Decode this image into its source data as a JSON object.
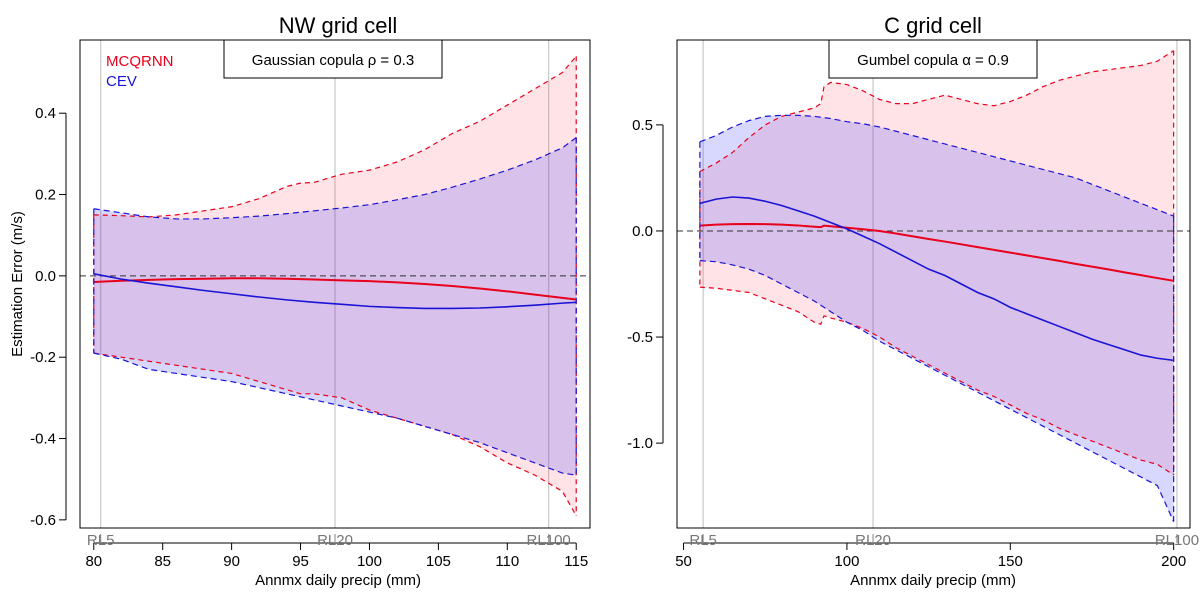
{
  "chart_data": [
    {
      "type": "area",
      "title": "NW grid cell",
      "xlabel": "Annmx daily precip (mm)",
      "ylabel": "Estimation Error (m/s)",
      "xlim": [
        79,
        116
      ],
      "ylim": [
        -0.62,
        0.58
      ],
      "x_ticks": [
        80,
        85,
        90,
        95,
        100,
        105,
        110,
        115
      ],
      "x_tick_labels": [
        "80",
        "85",
        "90",
        "95",
        "100",
        "105",
        "110",
        "115"
      ],
      "y_ticks": [
        -0.6,
        -0.4,
        -0.2,
        0.0,
        0.2,
        0.4
      ],
      "y_tick_labels": [
        "-0.6",
        "-0.4",
        "-0.2",
        "0.0",
        "0.2",
        "0.4"
      ],
      "return_levels": [
        {
          "label": "RL5",
          "x": 80.5
        },
        {
          "label": "RL20",
          "x": 97.5
        },
        {
          "label": "RL100",
          "x": 113
        }
      ],
      "annotation": "Gaussian copula ρ = 0.3",
      "legend": [
        {
          "name": "MCQRNN",
          "color": "#e8001c"
        },
        {
          "name": "CEV",
          "color": "#1a14d6"
        }
      ],
      "series": [
        {
          "name": "MCQRNN",
          "color": "#e8001c",
          "x": [
            80,
            82,
            84,
            86,
            88,
            90,
            92,
            94,
            95,
            96,
            98,
            100,
            102,
            104,
            106,
            108,
            110,
            112,
            114,
            115
          ],
          "lower": [
            -0.19,
            -0.2,
            -0.21,
            -0.22,
            -0.23,
            -0.24,
            -0.26,
            -0.28,
            -0.29,
            -0.29,
            -0.3,
            -0.33,
            -0.35,
            -0.37,
            -0.39,
            -0.42,
            -0.46,
            -0.49,
            -0.53,
            -0.59
          ],
          "median": [
            -0.015,
            -0.012,
            -0.01,
            -0.008,
            -0.007,
            -0.006,
            -0.006,
            -0.007,
            -0.008,
            -0.009,
            -0.011,
            -0.013,
            -0.016,
            -0.02,
            -0.025,
            -0.031,
            -0.038,
            -0.046,
            -0.054,
            -0.058
          ],
          "upper": [
            0.15,
            0.148,
            0.145,
            0.15,
            0.16,
            0.17,
            0.19,
            0.22,
            0.228,
            0.23,
            0.25,
            0.26,
            0.28,
            0.31,
            0.35,
            0.38,
            0.42,
            0.46,
            0.5,
            0.54
          ]
        },
        {
          "name": "CEV",
          "color": "#1a14d6",
          "x": [
            80,
            82,
            84,
            86,
            88,
            90,
            92,
            94,
            96,
            98,
            100,
            102,
            104,
            106,
            108,
            110,
            112,
            114,
            115
          ],
          "lower": [
            -0.19,
            -0.205,
            -0.23,
            -0.24,
            -0.25,
            -0.26,
            -0.275,
            -0.29,
            -0.305,
            -0.32,
            -0.335,
            -0.35,
            -0.37,
            -0.39,
            -0.41,
            -0.435,
            -0.46,
            -0.485,
            -0.49
          ],
          "median": [
            0.005,
            -0.008,
            -0.018,
            -0.027,
            -0.036,
            -0.044,
            -0.052,
            -0.059,
            -0.065,
            -0.07,
            -0.075,
            -0.078,
            -0.08,
            -0.08,
            -0.079,
            -0.076,
            -0.072,
            -0.067,
            -0.065
          ],
          "upper": [
            0.165,
            0.155,
            0.145,
            0.14,
            0.14,
            0.143,
            0.147,
            0.153,
            0.16,
            0.167,
            0.175,
            0.187,
            0.2,
            0.218,
            0.238,
            0.26,
            0.285,
            0.315,
            0.34
          ]
        }
      ]
    },
    {
      "type": "area",
      "title": "C grid cell",
      "xlabel": "Annmx daily precip (mm)",
      "ylabel": "",
      "xlim": [
        48,
        205
      ],
      "ylim": [
        -1.4,
        0.9
      ],
      "x_ticks": [
        50,
        100,
        150,
        200
      ],
      "x_tick_labels": [
        "50",
        "100",
        "150",
        "200"
      ],
      "y_ticks": [
        -1.0,
        -0.5,
        0.0,
        0.5
      ],
      "y_tick_labels": [
        "-1.0",
        "-0.5",
        "0.0",
        "0.5"
      ],
      "return_levels": [
        {
          "label": "RL5",
          "x": 56
        },
        {
          "label": "RL20",
          "x": 108
        },
        {
          "label": "RL100",
          "x": 201
        }
      ],
      "annotation": "Gumbel copula α = 0.9",
      "series": [
        {
          "name": "MCQRNN",
          "color": "#e8001c",
          "x": [
            55,
            60,
            65,
            70,
            75,
            80,
            85,
            90,
            92,
            93,
            95,
            100,
            105,
            110,
            115,
            120,
            125,
            130,
            135,
            140,
            145,
            150,
            155,
            160,
            165,
            170,
            175,
            180,
            185,
            190,
            195,
            200
          ],
          "lower": [
            -0.265,
            -0.27,
            -0.28,
            -0.29,
            -0.32,
            -0.35,
            -0.38,
            -0.43,
            -0.44,
            -0.4,
            -0.41,
            -0.43,
            -0.46,
            -0.5,
            -0.55,
            -0.59,
            -0.63,
            -0.67,
            -0.71,
            -0.75,
            -0.78,
            -0.82,
            -0.86,
            -0.89,
            -0.93,
            -0.96,
            -0.99,
            -1.02,
            -1.05,
            -1.08,
            -1.1,
            -1.15
          ],
          "median": [
            0.025,
            0.03,
            0.032,
            0.033,
            0.032,
            0.03,
            0.026,
            0.02,
            0.018,
            0.025,
            0.022,
            0.015,
            0.008,
            0.0,
            -0.012,
            -0.025,
            -0.038,
            -0.05,
            -0.063,
            -0.076,
            -0.089,
            -0.102,
            -0.115,
            -0.128,
            -0.141,
            -0.155,
            -0.168,
            -0.181,
            -0.195,
            -0.208,
            -0.222,
            -0.235
          ],
          "upper": [
            0.28,
            0.32,
            0.37,
            0.44,
            0.5,
            0.54,
            0.56,
            0.58,
            0.6,
            0.68,
            0.7,
            0.69,
            0.66,
            0.62,
            0.6,
            0.6,
            0.62,
            0.64,
            0.62,
            0.6,
            0.59,
            0.61,
            0.64,
            0.68,
            0.71,
            0.73,
            0.75,
            0.76,
            0.77,
            0.78,
            0.8,
            0.85
          ]
        },
        {
          "name": "CEV",
          "color": "#1a14d6",
          "x": [
            55,
            60,
            65,
            70,
            75,
            80,
            85,
            90,
            95,
            100,
            105,
            110,
            115,
            120,
            125,
            130,
            135,
            140,
            145,
            150,
            155,
            160,
            165,
            170,
            175,
            180,
            185,
            190,
            195,
            200
          ],
          "lower": [
            -0.14,
            -0.145,
            -0.16,
            -0.18,
            -0.21,
            -0.25,
            -0.29,
            -0.33,
            -0.38,
            -0.43,
            -0.47,
            -0.52,
            -0.56,
            -0.6,
            -0.64,
            -0.68,
            -0.72,
            -0.76,
            -0.8,
            -0.84,
            -0.88,
            -0.92,
            -0.96,
            -1.0,
            -1.04,
            -1.08,
            -1.12,
            -1.16,
            -1.2,
            -1.37
          ],
          "median": [
            0.13,
            0.15,
            0.16,
            0.155,
            0.14,
            0.12,
            0.095,
            0.07,
            0.04,
            0.01,
            -0.025,
            -0.06,
            -0.1,
            -0.14,
            -0.18,
            -0.21,
            -0.25,
            -0.29,
            -0.32,
            -0.36,
            -0.39,
            -0.42,
            -0.45,
            -0.48,
            -0.51,
            -0.535,
            -0.56,
            -0.585,
            -0.6,
            -0.61
          ],
          "upper": [
            0.42,
            0.45,
            0.49,
            0.52,
            0.54,
            0.545,
            0.545,
            0.54,
            0.53,
            0.515,
            0.505,
            0.49,
            0.47,
            0.45,
            0.43,
            0.41,
            0.39,
            0.37,
            0.35,
            0.33,
            0.31,
            0.29,
            0.27,
            0.25,
            0.22,
            0.19,
            0.16,
            0.13,
            0.1,
            0.07
          ]
        }
      ]
    }
  ]
}
